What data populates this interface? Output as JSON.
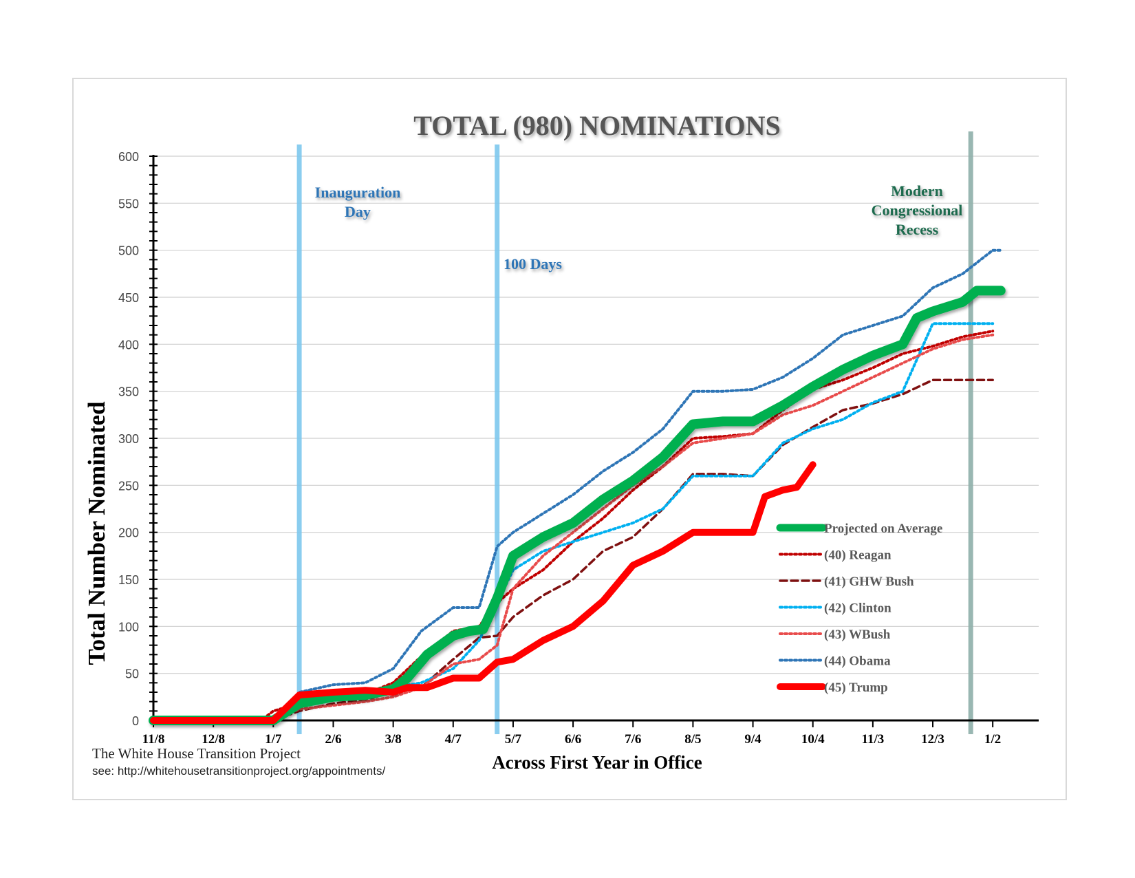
{
  "chart_data": {
    "type": "line",
    "title": "TOTAL (980) NOMINATIONS",
    "xlabel": "Across First Year in Office",
    "ylabel": "Total Number Nominated",
    "ylim": [
      0,
      600
    ],
    "yticks": [
      0,
      50,
      100,
      150,
      200,
      250,
      300,
      350,
      400,
      450,
      500,
      550,
      600
    ],
    "xlim": [
      "2016-11-08",
      "2018-01-25"
    ],
    "xticks": [
      {
        "label": "11/8",
        "date": "2016-11-08"
      },
      {
        "label": "12/8",
        "date": "2016-12-08"
      },
      {
        "label": "1/7",
        "date": "2017-01-07"
      },
      {
        "label": "2/6",
        "date": "2017-02-06"
      },
      {
        "label": "3/8",
        "date": "2017-03-08"
      },
      {
        "label": "4/7",
        "date": "2017-04-07"
      },
      {
        "label": "5/7",
        "date": "2017-05-07"
      },
      {
        "label": "6/6",
        "date": "2017-06-06"
      },
      {
        "label": "7/6",
        "date": "2017-07-06"
      },
      {
        "label": "8/5",
        "date": "2017-08-05"
      },
      {
        "label": "9/4",
        "date": "2017-09-04"
      },
      {
        "label": "10/4",
        "date": "2017-10-04"
      },
      {
        "label": "11/3",
        "date": "2017-11-03"
      },
      {
        "label": "12/3",
        "date": "2017-12-03"
      },
      {
        "label": "1/2",
        "date": "2018-01-02"
      }
    ],
    "grid": true,
    "legend_position": "lower-right",
    "annotations": [
      {
        "text": "Inauguration Day",
        "date": "2017-01-20",
        "color": "#2e75b6"
      },
      {
        "text": "100 Days",
        "date": "2017-04-29",
        "color": "#2e75b6"
      },
      {
        "text": "Modern Congressional Recess",
        "date": "2017-12-22",
        "color": "#1e6b4e"
      }
    ],
    "series": [
      {
        "name": "Projected on Average",
        "color": "#00b050",
        "style": "solid-thick",
        "points": [
          [
            "2016-11-08",
            0
          ],
          [
            "2017-01-07",
            0
          ],
          [
            "2017-01-20",
            18
          ],
          [
            "2017-02-06",
            25
          ],
          [
            "2017-02-22",
            27
          ],
          [
            "2017-03-08",
            33
          ],
          [
            "2017-03-15",
            45
          ],
          [
            "2017-03-25",
            70
          ],
          [
            "2017-04-07",
            90
          ],
          [
            "2017-04-15",
            95
          ],
          [
            "2017-04-22",
            97
          ],
          [
            "2017-04-29",
            130
          ],
          [
            "2017-05-07",
            175
          ],
          [
            "2017-05-22",
            195
          ],
          [
            "2017-06-06",
            210
          ],
          [
            "2017-06-21",
            235
          ],
          [
            "2017-07-06",
            255
          ],
          [
            "2017-07-21",
            280
          ],
          [
            "2017-08-05",
            315
          ],
          [
            "2017-08-20",
            318
          ],
          [
            "2017-09-04",
            318
          ],
          [
            "2017-09-19",
            335
          ],
          [
            "2017-10-04",
            355
          ],
          [
            "2017-10-19",
            373
          ],
          [
            "2017-11-03",
            388
          ],
          [
            "2017-11-18",
            400
          ],
          [
            "2017-11-25",
            428
          ],
          [
            "2017-12-03",
            435
          ],
          [
            "2017-12-18",
            445
          ],
          [
            "2017-12-25",
            457
          ],
          [
            "2018-01-06",
            457
          ]
        ]
      },
      {
        "name": "(40) Reagan",
        "color": "#c00000",
        "style": "dotted",
        "points": [
          [
            "2016-11-08",
            0
          ],
          [
            "2017-01-01",
            0
          ],
          [
            "2017-01-07",
            10
          ],
          [
            "2017-01-20",
            18
          ],
          [
            "2017-02-06",
            25
          ],
          [
            "2017-02-22",
            28
          ],
          [
            "2017-03-08",
            40
          ],
          [
            "2017-03-22",
            68
          ],
          [
            "2017-04-07",
            95
          ],
          [
            "2017-04-20",
            100
          ],
          [
            "2017-04-29",
            125
          ],
          [
            "2017-05-07",
            140
          ],
          [
            "2017-05-22",
            160
          ],
          [
            "2017-06-06",
            190
          ],
          [
            "2017-06-21",
            215
          ],
          [
            "2017-07-06",
            245
          ],
          [
            "2017-07-21",
            270
          ],
          [
            "2017-08-05",
            300
          ],
          [
            "2017-08-20",
            302
          ],
          [
            "2017-09-04",
            305
          ],
          [
            "2017-09-19",
            330
          ],
          [
            "2017-10-04",
            352
          ],
          [
            "2017-10-19",
            362
          ],
          [
            "2017-11-03",
            375
          ],
          [
            "2017-11-18",
            390
          ],
          [
            "2017-12-03",
            398
          ],
          [
            "2017-12-18",
            408
          ],
          [
            "2018-01-02",
            414
          ]
        ]
      },
      {
        "name": "(41) GHW Bush",
        "color": "#7f1010",
        "style": "dashed",
        "points": [
          [
            "2016-11-08",
            0
          ],
          [
            "2017-01-07",
            0
          ],
          [
            "2017-01-20",
            10
          ],
          [
            "2017-02-06",
            18
          ],
          [
            "2017-02-22",
            22
          ],
          [
            "2017-03-08",
            30
          ],
          [
            "2017-03-22",
            35
          ],
          [
            "2017-04-07",
            65
          ],
          [
            "2017-04-20",
            88
          ],
          [
            "2017-04-29",
            90
          ],
          [
            "2017-05-07",
            110
          ],
          [
            "2017-05-22",
            133
          ],
          [
            "2017-06-06",
            150
          ],
          [
            "2017-06-21",
            180
          ],
          [
            "2017-07-06",
            195
          ],
          [
            "2017-07-21",
            225
          ],
          [
            "2017-08-05",
            262
          ],
          [
            "2017-08-20",
            262
          ],
          [
            "2017-09-04",
            260
          ],
          [
            "2017-09-19",
            293
          ],
          [
            "2017-10-04",
            312
          ],
          [
            "2017-10-19",
            330
          ],
          [
            "2017-11-03",
            337
          ],
          [
            "2017-11-18",
            347
          ],
          [
            "2017-12-03",
            362
          ],
          [
            "2017-12-18",
            362
          ],
          [
            "2018-01-02",
            362
          ]
        ]
      },
      {
        "name": "(42) Clinton",
        "color": "#00b0f0",
        "style": "dotted",
        "points": [
          [
            "2016-11-08",
            0
          ],
          [
            "2017-01-07",
            0
          ],
          [
            "2017-01-20",
            15
          ],
          [
            "2017-02-06",
            25
          ],
          [
            "2017-02-22",
            28
          ],
          [
            "2017-03-08",
            35
          ],
          [
            "2017-03-22",
            40
          ],
          [
            "2017-04-07",
            55
          ],
          [
            "2017-04-20",
            85
          ],
          [
            "2017-05-07",
            160
          ],
          [
            "2017-05-22",
            180
          ],
          [
            "2017-06-06",
            190
          ],
          [
            "2017-06-21",
            200
          ],
          [
            "2017-07-06",
            210
          ],
          [
            "2017-07-21",
            225
          ],
          [
            "2017-08-05",
            260
          ],
          [
            "2017-08-20",
            260
          ],
          [
            "2017-09-04",
            260
          ],
          [
            "2017-09-19",
            295
          ],
          [
            "2017-10-04",
            310
          ],
          [
            "2017-10-19",
            320
          ],
          [
            "2017-11-03",
            338
          ],
          [
            "2017-11-18",
            350
          ],
          [
            "2017-12-03",
            422
          ],
          [
            "2018-01-02",
            422
          ]
        ]
      },
      {
        "name": "(43) WBush",
        "color": "#e84b4b",
        "style": "dotted",
        "points": [
          [
            "2016-11-08",
            0
          ],
          [
            "2017-01-07",
            0
          ],
          [
            "2017-01-20",
            12
          ],
          [
            "2017-02-06",
            16
          ],
          [
            "2017-02-22",
            20
          ],
          [
            "2017-03-08",
            25
          ],
          [
            "2017-03-22",
            35
          ],
          [
            "2017-04-07",
            60
          ],
          [
            "2017-04-20",
            65
          ],
          [
            "2017-04-29",
            80
          ],
          [
            "2017-05-07",
            140
          ],
          [
            "2017-05-22",
            175
          ],
          [
            "2017-06-06",
            200
          ],
          [
            "2017-06-21",
            225
          ],
          [
            "2017-07-06",
            250
          ],
          [
            "2017-07-21",
            270
          ],
          [
            "2017-08-05",
            295
          ],
          [
            "2017-08-20",
            300
          ],
          [
            "2017-09-04",
            305
          ],
          [
            "2017-09-19",
            325
          ],
          [
            "2017-10-04",
            335
          ],
          [
            "2017-10-19",
            350
          ],
          [
            "2017-11-03",
            365
          ],
          [
            "2017-11-18",
            380
          ],
          [
            "2017-12-03",
            395
          ],
          [
            "2017-12-18",
            405
          ],
          [
            "2018-01-02",
            410
          ]
        ]
      },
      {
        "name": "(44) Obama",
        "color": "#2e75b6",
        "style": "dotted",
        "points": [
          [
            "2016-11-08",
            0
          ],
          [
            "2017-01-07",
            0
          ],
          [
            "2017-01-20",
            30
          ],
          [
            "2017-02-06",
            38
          ],
          [
            "2017-02-22",
            40
          ],
          [
            "2017-03-08",
            55
          ],
          [
            "2017-03-22",
            95
          ],
          [
            "2017-04-07",
            120
          ],
          [
            "2017-04-20",
            120
          ],
          [
            "2017-04-29",
            185
          ],
          [
            "2017-05-07",
            200
          ],
          [
            "2017-05-22",
            220
          ],
          [
            "2017-06-06",
            240
          ],
          [
            "2017-06-21",
            265
          ],
          [
            "2017-07-06",
            285
          ],
          [
            "2017-07-21",
            310
          ],
          [
            "2017-08-05",
            350
          ],
          [
            "2017-08-20",
            350
          ],
          [
            "2017-09-04",
            352
          ],
          [
            "2017-09-19",
            365
          ],
          [
            "2017-10-04",
            385
          ],
          [
            "2017-10-19",
            410
          ],
          [
            "2017-11-03",
            420
          ],
          [
            "2017-11-18",
            430
          ],
          [
            "2017-12-03",
            460
          ],
          [
            "2017-12-18",
            475
          ],
          [
            "2018-01-02",
            500
          ],
          [
            "2018-01-06",
            500
          ]
        ]
      },
      {
        "name": "(45) Trump",
        "color": "#ff0000",
        "style": "solid-thick",
        "points": [
          [
            "2016-11-08",
            0
          ],
          [
            "2017-01-07",
            0
          ],
          [
            "2017-01-20",
            27
          ],
          [
            "2017-02-06",
            30
          ],
          [
            "2017-02-22",
            32
          ],
          [
            "2017-03-08",
            30
          ],
          [
            "2017-03-15",
            35
          ],
          [
            "2017-03-25",
            35
          ],
          [
            "2017-04-07",
            45
          ],
          [
            "2017-04-20",
            45
          ],
          [
            "2017-04-29",
            62
          ],
          [
            "2017-05-07",
            65
          ],
          [
            "2017-05-22",
            85
          ],
          [
            "2017-06-06",
            100
          ],
          [
            "2017-06-21",
            127
          ],
          [
            "2017-07-06",
            165
          ],
          [
            "2017-07-21",
            180
          ],
          [
            "2017-08-05",
            200
          ],
          [
            "2017-08-20",
            200
          ],
          [
            "2017-09-04",
            200
          ],
          [
            "2017-09-10",
            238
          ],
          [
            "2017-09-19",
            245
          ],
          [
            "2017-09-26",
            248
          ],
          [
            "2017-10-04",
            272
          ]
        ]
      }
    ]
  },
  "footer": {
    "credit": "The White House Transition Project",
    "url": "see: http://whitehousetransitionproject.org/appointments/"
  }
}
